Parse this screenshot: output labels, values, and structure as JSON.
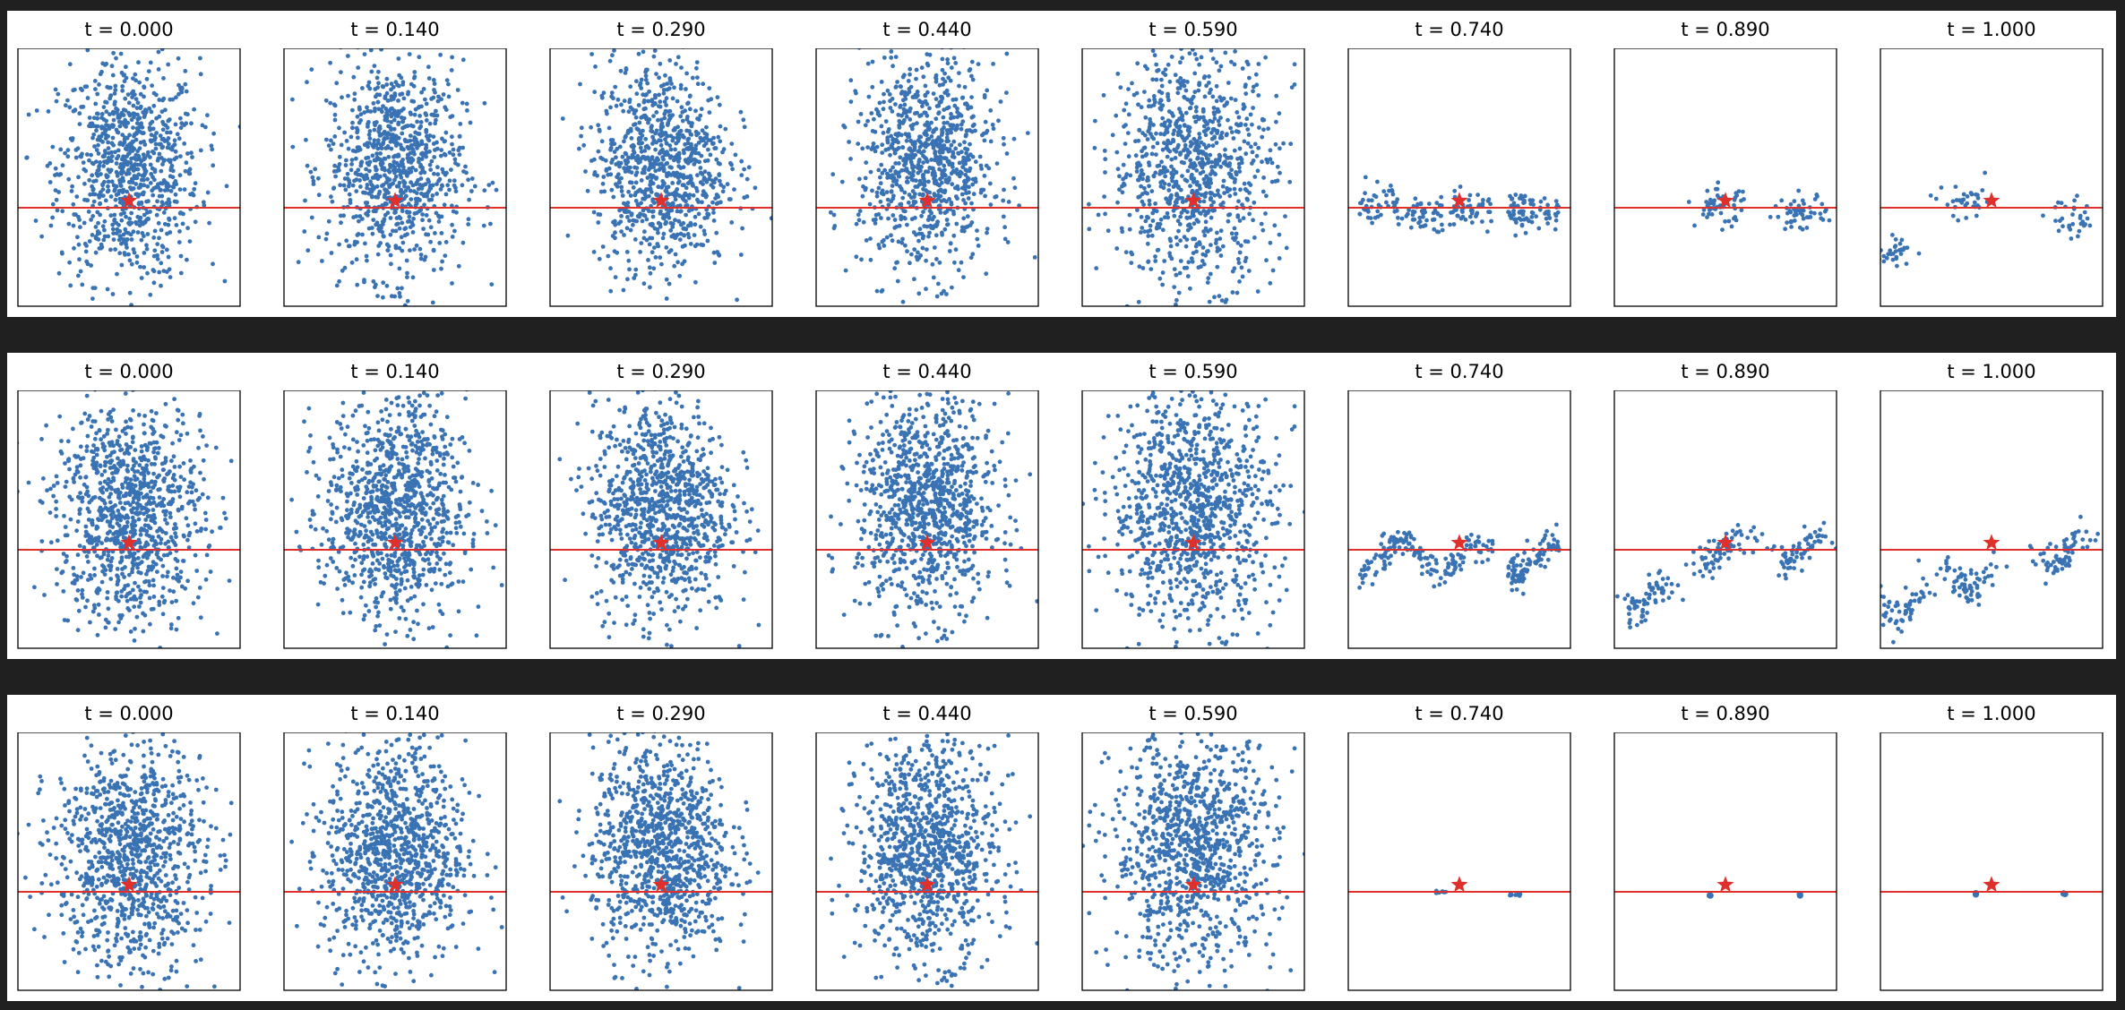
{
  "figure": {
    "row_count": 3,
    "colors": {
      "points": "#3a73b4",
      "reference_line": "#e0302c",
      "star": "#e0302c",
      "frame": "#000000",
      "background": "#202020"
    }
  },
  "chart_data": {
    "type": "scatter",
    "panel_titles": [
      "t = 0.000",
      "t = 0.140",
      "t = 0.290",
      "t = 0.440",
      "t = 0.590",
      "t = 0.740",
      "t = 0.890",
      "t = 1.000"
    ],
    "times": [
      0.0,
      0.14,
      0.29,
      0.44,
      0.59,
      0.74,
      0.89,
      1.0
    ],
    "grid": false,
    "axes_visible": false,
    "xlim": [
      -3,
      3
    ],
    "ylim": [
      -3,
      3
    ],
    "reference_line_y": 0,
    "star_point": {
      "x": 0,
      "y": 0.2
    },
    "rows": [
      {
        "id": "row-1",
        "panels": [
          {
            "t": 0.0,
            "distribution": "isotropic-gaussian",
            "points": 900,
            "spread": 1.0,
            "center": [
              0,
              0.7
            ]
          },
          {
            "t": 0.14,
            "distribution": "isotropic-gaussian",
            "points": 900,
            "spread": 0.97,
            "center": [
              0,
              0.75
            ]
          },
          {
            "t": 0.29,
            "distribution": "isotropic-gaussian",
            "points": 900,
            "spread": 0.95,
            "center": [
              0,
              0.8
            ]
          },
          {
            "t": 0.44,
            "distribution": "isotropic-gaussian",
            "points": 900,
            "spread": 0.96,
            "center": [
              0,
              0.8
            ]
          },
          {
            "t": 0.59,
            "distribution": "wide-gaussian",
            "points": 900,
            "spread": 1.05,
            "center": [
              0,
              0.8
            ]
          },
          {
            "t": 0.74,
            "distribution": "band-near-line",
            "points": 220,
            "band_y": [
              -0.5,
              0.4
            ]
          },
          {
            "t": 0.89,
            "distribution": "two-clusters",
            "points": 110,
            "clusters": [
              [
                -0.1,
                0.0
              ],
              [
                2.0,
                -0.1
              ]
            ]
          },
          {
            "t": 1.0,
            "distribution": "clusters",
            "points": 100,
            "clusters": [
              [
                -0.6,
                0.1
              ],
              [
                2.2,
                -0.2
              ],
              [
                -2.7,
                -0.9
              ]
            ]
          }
        ]
      },
      {
        "id": "row-2",
        "panels": [
          {
            "t": 0.0,
            "distribution": "isotropic-gaussian",
            "points": 1000,
            "spread": 1.05,
            "center": [
              0,
              0.7
            ]
          },
          {
            "t": 0.14,
            "distribution": "isotropic-gaussian",
            "points": 1000,
            "spread": 1.0,
            "center": [
              0,
              0.75
            ]
          },
          {
            "t": 0.29,
            "distribution": "isotropic-gaussian",
            "points": 1000,
            "spread": 0.98,
            "center": [
              0,
              0.8
            ]
          },
          {
            "t": 0.44,
            "distribution": "isotropic-gaussian",
            "points": 1000,
            "spread": 0.98,
            "center": [
              0,
              0.8
            ]
          },
          {
            "t": 0.59,
            "distribution": "wide-gaussian",
            "points": 1000,
            "spread": 1.05,
            "center": [
              0,
              0.8
            ]
          },
          {
            "t": 0.74,
            "distribution": "wavy-band",
            "points": 260,
            "band_y": [
              -0.7,
              0.4
            ]
          },
          {
            "t": 0.89,
            "distribution": "wavy-clusters",
            "points": 200,
            "clusters": [
              [
                -0.1,
                0.0
              ],
              [
                2.0,
                0.0
              ],
              [
                -2.1,
                -0.9
              ]
            ]
          },
          {
            "t": 1.0,
            "distribution": "wavy-clusters",
            "points": 200,
            "clusters": [
              [
                -0.6,
                -0.5
              ],
              [
                2.0,
                0.0
              ],
              [
                -2.5,
                -1.0
              ]
            ]
          }
        ]
      },
      {
        "id": "row-3",
        "panels": [
          {
            "t": 0.0,
            "distribution": "isotropic-gaussian",
            "points": 1000,
            "spread": 1.05,
            "center": [
              0,
              0.7
            ]
          },
          {
            "t": 0.14,
            "distribution": "isotropic-gaussian",
            "points": 1000,
            "spread": 1.0,
            "center": [
              0,
              0.75
            ]
          },
          {
            "t": 0.29,
            "distribution": "isotropic-gaussian",
            "points": 1000,
            "spread": 0.98,
            "center": [
              0,
              0.8
            ]
          },
          {
            "t": 0.44,
            "distribution": "isotropic-gaussian",
            "points": 1000,
            "spread": 0.98,
            "center": [
              0,
              0.8
            ]
          },
          {
            "t": 0.59,
            "distribution": "wide-gaussian",
            "points": 1000,
            "spread": 1.05,
            "center": [
              0,
              0.8
            ]
          },
          {
            "t": 0.74,
            "distribution": "collapsed-on-line",
            "points": 18,
            "clusters": [
              [
                -0.5,
                0.05
              ],
              [
                1.5,
                0.0
              ]
            ]
          },
          {
            "t": 0.89,
            "distribution": "collapsed-points",
            "points": 4,
            "clusters": [
              [
                -0.4,
                0.0
              ],
              [
                2.0,
                0.0
              ]
            ]
          },
          {
            "t": 1.0,
            "distribution": "collapsed-points",
            "points": 4,
            "clusters": [
              [
                -0.4,
                0.0
              ],
              [
                2.0,
                0.0
              ]
            ]
          }
        ]
      }
    ]
  }
}
